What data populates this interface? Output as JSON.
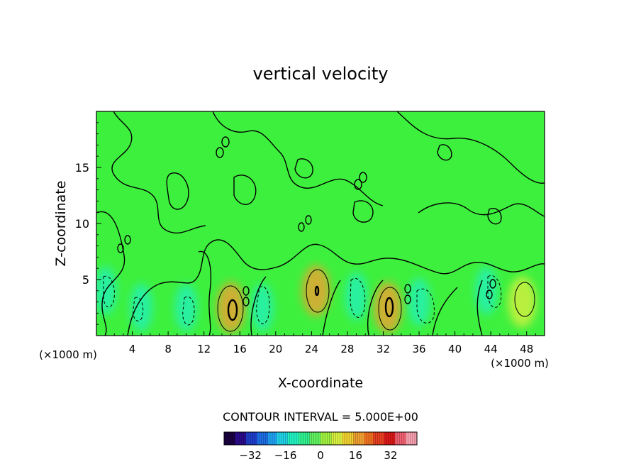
{
  "chart_data": {
    "type": "heatmap",
    "title": "vertical velocity",
    "xlabel": "X-coordinate",
    "ylabel": "Z-coordinate",
    "x_unit_left": "(×1000 m)",
    "x_unit_right": "(×1000 m)",
    "xlim": [
      0,
      50
    ],
    "ylim": [
      0,
      20
    ],
    "x_ticks": [
      4,
      8,
      12,
      16,
      20,
      24,
      28,
      32,
      36,
      40,
      44,
      48
    ],
    "y_ticks": [
      5,
      10,
      15
    ],
    "contour_interval_label": "CONTOUR INTERVAL = 5.000E+00",
    "colorbar": {
      "min": -44,
      "max": 44,
      "ticks": [
        -32,
        -16,
        0,
        16,
        32
      ],
      "colors": [
        "#1a0040",
        "#2a0a8a",
        "#1e3cc8",
        "#1e6ee6",
        "#1ea0f0",
        "#20d2e6",
        "#22f0c0",
        "#30f090",
        "#60f060",
        "#a0f040",
        "#d8f040",
        "#f0d030",
        "#f0a030",
        "#f07020",
        "#e84020",
        "#d81818",
        "#f06070",
        "#f8a0b0"
      ]
    },
    "field_background_color": "#3ef03e",
    "updraft_cores": [
      {
        "x": 15,
        "z": 2.5,
        "w": 15
      },
      {
        "x": 24.5,
        "z": 4,
        "w": 15
      },
      {
        "x": 32.5,
        "z": 2.5,
        "w": 15
      },
      {
        "x": 47.5,
        "z": 3,
        "w": 5
      }
    ],
    "downdraft_zones": [
      {
        "x": 1,
        "z": 4,
        "w": -5
      },
      {
        "x": 5,
        "z": 2.5,
        "w": -5
      },
      {
        "x": 10,
        "z": 2.5,
        "w": -5
      },
      {
        "x": 18.5,
        "z": 2.5,
        "w": -5
      },
      {
        "x": 29,
        "z": 3.5,
        "w": -5
      },
      {
        "x": 36,
        "z": 3,
        "w": -5
      },
      {
        "x": 43.5,
        "z": 4,
        "w": -5
      }
    ]
  }
}
